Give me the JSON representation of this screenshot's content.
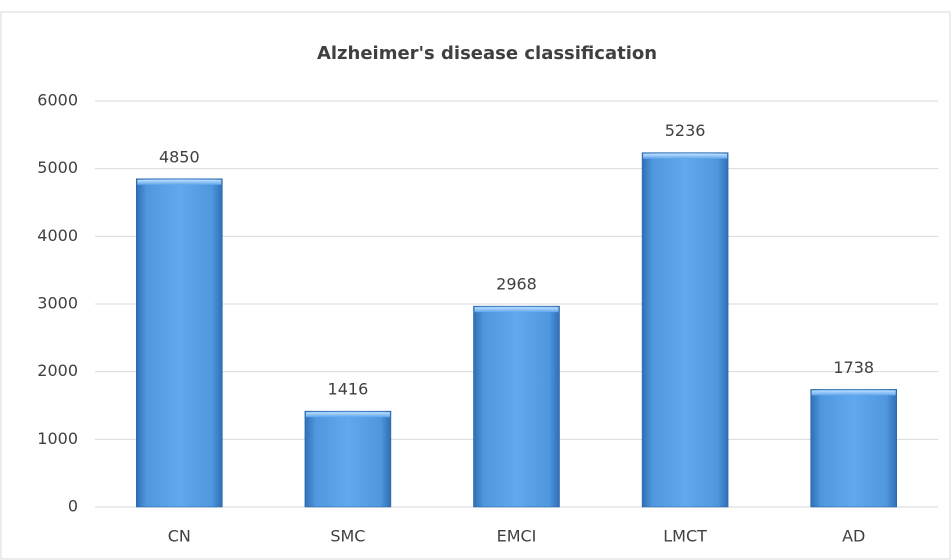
{
  "chart_data": {
    "type": "bar",
    "title": "Alzheimer's disease classification",
    "categories": [
      "CN",
      "SMC",
      "EMCI",
      "LMCT",
      "AD"
    ],
    "values": [
      4850,
      1416,
      2968,
      5236,
      1738
    ],
    "color": "#4a90d9",
    "ylim": [
      0,
      6000
    ],
    "yticks": [
      0,
      1000,
      2000,
      3000,
      4000,
      5000,
      6000
    ],
    "grid": true
  }
}
